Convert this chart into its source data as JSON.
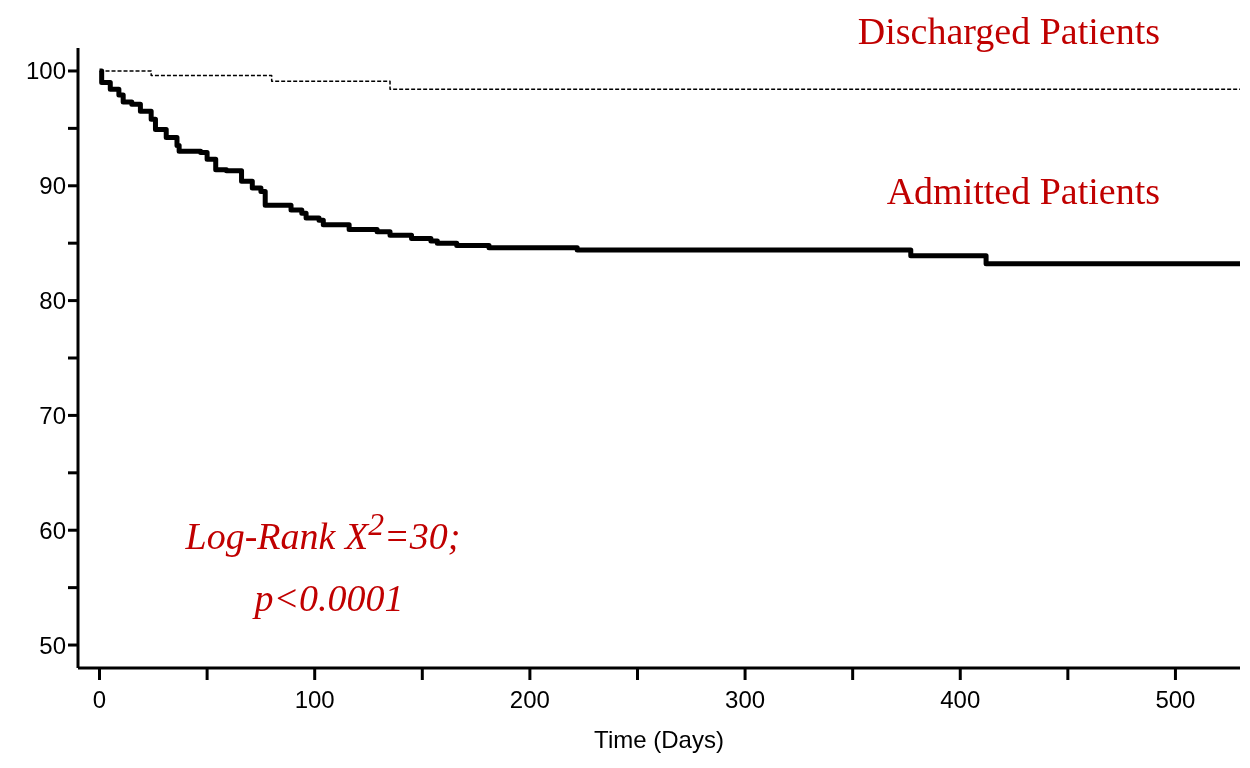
{
  "chart_data": {
    "type": "step",
    "xlabel": "Time  (Days)",
    "xlim": [
      -10,
      530
    ],
    "xticks": [
      0,
      {
        "value": 50,
        "label": null
      },
      100,
      {
        "value": 150,
        "label": null
      },
      200,
      {
        "value": 250,
        "label": null
      },
      300,
      {
        "value": 350,
        "label": null
      },
      400,
      {
        "value": 450,
        "label": null
      },
      500
    ],
    "ylim": [
      48,
      102
    ],
    "yticks": [
      50,
      {
        "value": 55,
        "label": null
      },
      60,
      {
        "value": 65,
        "label": null
      },
      70,
      {
        "value": 75,
        "label": null
      },
      80,
      {
        "value": 85,
        "label": null
      },
      90,
      {
        "value": 95,
        "label": null
      },
      100
    ],
    "marker": "none",
    "series": [
      {
        "name": "Discharged Patients",
        "color": "#000000",
        "line_style": "dashed",
        "x": [
          0,
          24,
          80,
          135,
          530
        ],
        "values": [
          100,
          99.6,
          99.1,
          98.4,
          98.4
        ]
      },
      {
        "name": "Admitted Patients",
        "color": "#000000",
        "line_style": "solid",
        "x": [
          0,
          1,
          5,
          9,
          11,
          15,
          19,
          24,
          26,
          31,
          36,
          37,
          47,
          50,
          54,
          59,
          66,
          71,
          75,
          77,
          89,
          94,
          96,
          102,
          104,
          116,
          129,
          135,
          145,
          154,
          157,
          166,
          181,
          222,
          377,
          412,
          530
        ],
        "values": [
          100,
          99,
          98.4,
          97.9,
          97.3,
          97.1,
          96.5,
          95.8,
          94.9,
          94.2,
          93.5,
          93,
          92.9,
          92.3,
          91.4,
          91.3,
          90.4,
          89.8,
          89.5,
          88.3,
          87.9,
          87.6,
          87.2,
          87,
          86.6,
          86.2,
          86,
          85.7,
          85.4,
          85.2,
          85,
          84.8,
          84.6,
          84.4,
          83.9,
          83.2,
          83.2
        ]
      }
    ],
    "annotations": [
      "Log-Rank X$^{2}$=30;",
      "p<0.0001"
    ]
  }
}
